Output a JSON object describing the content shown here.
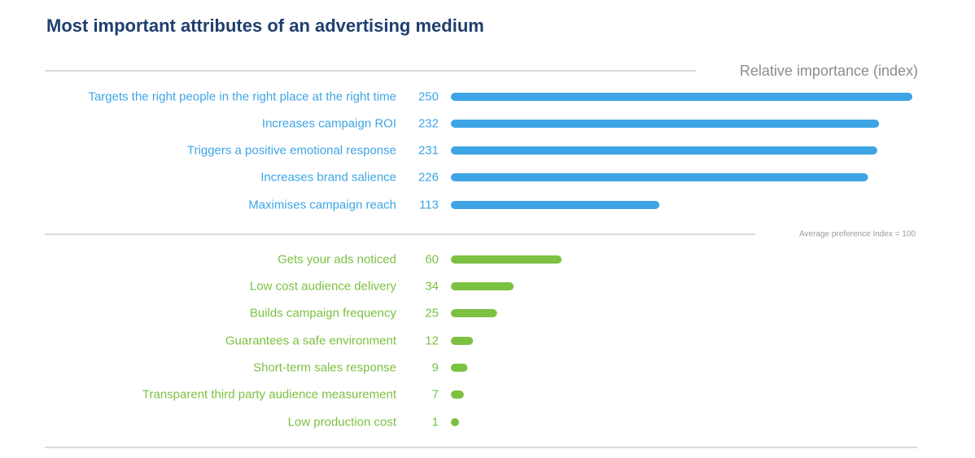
{
  "chart_data": {
    "type": "bar",
    "orientation": "horizontal",
    "title": "Most important attributes of an advertising medium",
    "xlabel": "Relative importance (index)",
    "ylabel": "",
    "xlim": [
      0,
      250
    ],
    "grid": false,
    "reference_line": {
      "value": 100,
      "label": "Average preference Index = 100"
    },
    "categories": [
      "Targets the right people in the right place at the right time",
      "Increases campaign ROI",
      "Triggers a positive emotional response",
      "Increases brand salience",
      "Maximises campaign reach",
      "Gets your ads noticed",
      "Low cost audience delivery",
      "Builds campaign frequency",
      "Guarantees a safe environment",
      "Short-term sales response",
      "Transparent third party audience measurement",
      "Low production cost"
    ],
    "values": [
      250,
      232,
      231,
      226,
      113,
      60,
      34,
      25,
      12,
      9,
      7,
      1
    ],
    "groups": [
      {
        "name": "",
        "color": "#3da5e6",
        "start": 0,
        "end": 5
      },
      {
        "name": "",
        "color": "#7cc142",
        "start": 5,
        "end": 12
      }
    ]
  },
  "colors": {
    "title": "#1f3f6e",
    "above_average": "#3da5e6",
    "below_average": "#7cc142",
    "rule": "#b5b5b5",
    "axis_text": "#8c8c8c"
  }
}
